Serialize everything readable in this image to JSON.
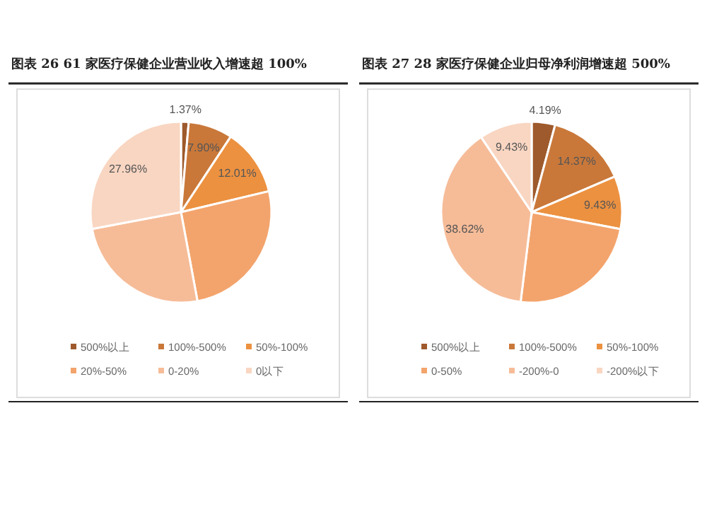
{
  "chart_data": [
    {
      "type": "pie",
      "title": "图表 26  61 家医疗保健企业营业收入增速超 100%",
      "legend": "bottom",
      "categories": [
        "500%以上",
        "100%-500%",
        "50%-100%",
        "20%-50%",
        "0-20%",
        "0以下"
      ],
      "values": [
        1.37,
        7.9,
        12.01,
        25.8,
        24.96,
        27.96
      ],
      "value_labels": [
        "1.37%",
        "7.90%",
        "12.01%",
        null,
        null,
        "27.96%"
      ],
      "colors": [
        "#9e5a2c",
        "#c9783a",
        "#ec9140",
        "#f3a46c",
        "#f6bc98",
        "#f9d6c2"
      ]
    },
    {
      "type": "pie",
      "title": "图表 27  28 家医疗保健企业归母净利润增速超 500%",
      "legend": "bottom",
      "categories": [
        "500%以上",
        "100%-500%",
        "50%-100%",
        "0-50%",
        "-200%-0",
        "-200%以下"
      ],
      "values": [
        4.19,
        14.37,
        9.43,
        23.96,
        38.62,
        9.43
      ],
      "value_labels": [
        "4.19%",
        "14.37%",
        "9.43%",
        null,
        "38.62%",
        "9.43%"
      ],
      "colors": [
        "#9e5a2c",
        "#c9783a",
        "#ec9140",
        "#f3a46c",
        "#f6bc98",
        "#f9d6c2"
      ]
    }
  ]
}
